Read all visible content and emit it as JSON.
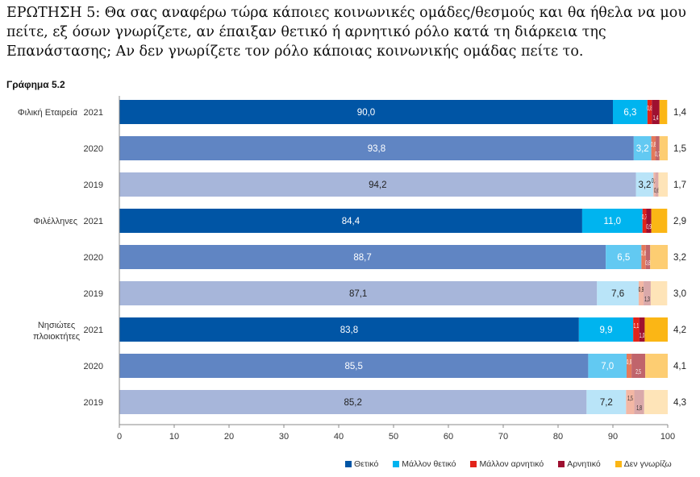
{
  "question": "ΕΡΩΤΗΣΗ 5: Θα σας αναφέρω τώρα κάποιες κοινωνικές ομάδες/θεσμούς και θα ήθελα να μου πείτε, εξ όσων γνωρίζετε, αν έπαιξαν θετικό ή αρνητικό ρόλο κατά τη διάρκεια της Επανάστασης; Αν δεν γνωρίζετε τον ρόλο κάποιας κοινωνικής ομάδας πείτε το.",
  "chart_data": {
    "type": "bar",
    "orientation": "horizontal",
    "stacked": true,
    "title": "Γράφημα 5.2",
    "xlim": [
      0,
      100
    ],
    "xticks": [
      0,
      10,
      20,
      30,
      40,
      50,
      60,
      70,
      80,
      90,
      100
    ],
    "legend_position": "bottom-right",
    "series_names": [
      "Θετικό",
      "Μάλλον θετικό",
      "Μάλλον αρνητικό",
      "Αρνητικό",
      "Δεν γνωρίζω"
    ],
    "legend_colors": [
      "#0055a5",
      "#00b4ef",
      "#e2231a",
      "#9e1030",
      "#fbb615"
    ],
    "year_colors": {
      "2021": [
        "#0055a5",
        "#00b4ef",
        "#e2231a",
        "#9e1030",
        "#fbb615"
      ],
      "2020": [
        "#6085c3",
        "#62c9f2",
        "#e4795a",
        "#c0646b",
        "#fdcd72"
      ],
      "2019": [
        "#a7b6da",
        "#b9e4f8",
        "#f3b7a4",
        "#daa9aa",
        "#fee4b8"
      ]
    },
    "groups": [
      {
        "label": "Φιλική Εταιρεία",
        "rows": [
          {
            "year": "2021",
            "values": [
              90.0,
              6.3,
              0.8,
              1.4,
              1.4
            ]
          },
          {
            "year": "2020",
            "values": [
              93.8,
              3.2,
              0.8,
              0.7,
              1.5
            ]
          },
          {
            "year": "2019",
            "values": [
              94.2,
              3.2,
              0.3,
              0.6,
              1.7
            ]
          }
        ]
      },
      {
        "label": "Φιλέλληνες",
        "rows": [
          {
            "year": "2021",
            "values": [
              84.4,
              11.0,
              0.7,
              0.9,
              2.9
            ]
          },
          {
            "year": "2020",
            "values": [
              88.7,
              6.5,
              0.8,
              0.8,
              3.2
            ]
          },
          {
            "year": "2019",
            "values": [
              87.1,
              7.6,
              0.9,
              1.3,
              3.0
            ]
          }
        ]
      },
      {
        "label": "Νησιώτες πλοιοκτήτες",
        "rows": [
          {
            "year": "2021",
            "values": [
              83.8,
              9.9,
              1.1,
              1.0,
              4.2
            ]
          },
          {
            "year": "2020",
            "values": [
              85.5,
              7.0,
              0.9,
              2.5,
              4.1
            ]
          },
          {
            "year": "2019",
            "values": [
              85.2,
              7.2,
              1.5,
              1.8,
              4.3
            ]
          }
        ]
      }
    ]
  }
}
